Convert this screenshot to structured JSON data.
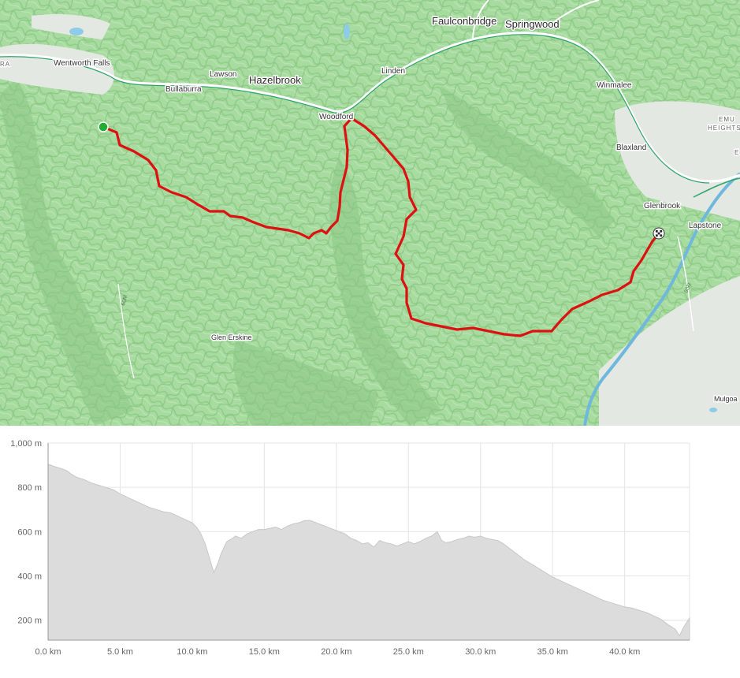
{
  "map": {
    "places": [
      {
        "id": "wentworth-falls",
        "label": "Wentworth Falls",
        "size": "small"
      },
      {
        "id": "bullaburra",
        "label": "Bullaburra",
        "size": "small"
      },
      {
        "id": "lawson",
        "label": "Lawson",
        "size": "small"
      },
      {
        "id": "hazelbrook",
        "label": "Hazelbrook",
        "size": "big"
      },
      {
        "id": "linden",
        "label": "Linden",
        "size": "small"
      },
      {
        "id": "faulconbridge",
        "label": "Faulconbridge",
        "size": "big"
      },
      {
        "id": "springwood",
        "label": "Springwood",
        "size": "big"
      },
      {
        "id": "woodford",
        "label": "Woodford",
        "size": "small"
      },
      {
        "id": "winmalee",
        "label": "Winmalee",
        "size": "small"
      },
      {
        "id": "emu",
        "label": "EMU",
        "size": "tiny"
      },
      {
        "id": "heights",
        "label": "HEIGHTS",
        "size": "tiny"
      },
      {
        "id": "blaxland",
        "label": "Blaxland",
        "size": "small"
      },
      {
        "id": "glenbrook",
        "label": "Glenbrook",
        "size": "small"
      },
      {
        "id": "lapstone",
        "label": "Lapstone",
        "size": "small"
      },
      {
        "id": "glen-erskine",
        "label": "Glen Erskine",
        "size": "small"
      },
      {
        "id": "mulgoa",
        "label": "Mulgoa",
        "size": "small"
      },
      {
        "id": "edge-ra",
        "label": "RA",
        "size": "tiny"
      },
      {
        "id": "edge-e",
        "label": "E",
        "size": "tiny"
      }
    ],
    "road_labels": [
      "60M",
      "60R"
    ],
    "route_color": "#dd1111",
    "start_marker_color": "#1fae2e",
    "terrain_color": "#a7dba0"
  },
  "chart_data": {
    "type": "area",
    "xlabel": "",
    "ylabel": "",
    "x_unit": "km",
    "y_unit": "m",
    "xlim": [
      0,
      44.5
    ],
    "ylim": [
      110,
      1000
    ],
    "x_ticks": [
      "0.0 km",
      "5.0 km",
      "10.0 km",
      "15.0 km",
      "20.0 km",
      "25.0 km",
      "30.0 km",
      "35.0 km",
      "40.0 km"
    ],
    "x_tick_values": [
      0,
      5,
      10,
      15,
      20,
      25,
      30,
      35,
      40
    ],
    "y_ticks": [
      "1,000 m",
      "800 m",
      "600 m",
      "400 m",
      "200 m"
    ],
    "y_tick_values": [
      1000,
      800,
      600,
      400,
      200
    ],
    "grid": true,
    "fill_color": "#dcdcdc",
    "series": [
      {
        "x": [
          0,
          0.4,
          0.9,
          1.3,
          1.6,
          2.0,
          2.5,
          3.0,
          3.5,
          4.0,
          4.5,
          5.0,
          5.5,
          6.0,
          6.5,
          7.0,
          7.5,
          8.0,
          8.5,
          9.0,
          9.5,
          10.0,
          10.3,
          10.6,
          10.9,
          11.2,
          11.5,
          11.8,
          12.0,
          12.4,
          12.8,
          13.0,
          13.4,
          13.8,
          14.2,
          14.6,
          15.0,
          15.4,
          15.8,
          16.2,
          16.6,
          17.0,
          17.4,
          17.8,
          18.2,
          18.6,
          19.0,
          19.4,
          19.8,
          20.2,
          20.6,
          21.0,
          21.4,
          21.8,
          22.2,
          22.6,
          23.0,
          23.4,
          23.8,
          24.2,
          24.6,
          25.0,
          25.4,
          25.8,
          26.2,
          26.6,
          27.0,
          27.3,
          27.6,
          28.0,
          28.4,
          28.8,
          29.2,
          29.6,
          30.0,
          30.4,
          30.8,
          31.2,
          31.6,
          32.0,
          32.5,
          33.0,
          33.5,
          34.0,
          34.5,
          35.0,
          35.5,
          36.0,
          36.5,
          37.0,
          37.5,
          38.0,
          38.5,
          39.0,
          39.5,
          40.0,
          40.5,
          41.0,
          41.5,
          42.0,
          42.5,
          43.0,
          43.5,
          43.8,
          44.1,
          44.5
        ],
        "y": [
          905,
          895,
          885,
          875,
          860,
          845,
          835,
          820,
          810,
          800,
          790,
          770,
          755,
          740,
          725,
          710,
          700,
          690,
          685,
          670,
          655,
          640,
          620,
          590,
          545,
          480,
          415,
          460,
          500,
          555,
          570,
          580,
          570,
          590,
          600,
          610,
          610,
          615,
          620,
          610,
          625,
          635,
          640,
          650,
          650,
          640,
          630,
          620,
          610,
          600,
          590,
          570,
          560,
          545,
          550,
          530,
          560,
          550,
          545,
          535,
          545,
          555,
          545,
          555,
          570,
          580,
          600,
          560,
          550,
          555,
          565,
          570,
          580,
          575,
          580,
          570,
          565,
          560,
          545,
          525,
          500,
          475,
          455,
          435,
          415,
          395,
          380,
          365,
          350,
          335,
          320,
          305,
          290,
          280,
          270,
          260,
          255,
          245,
          235,
          220,
          205,
          180,
          160,
          130,
          170,
          210
        ]
      }
    ]
  }
}
